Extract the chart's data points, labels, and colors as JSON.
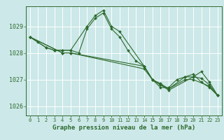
{
  "background_color": "#cce8e8",
  "grid_color": "#ffffff",
  "line_color": "#2d6a2d",
  "xlabel": "Graphe pression niveau de la mer (hPa)",
  "xlim": [
    -0.5,
    23.5
  ],
  "ylim": [
    1025.65,
    1029.75
  ],
  "yticks": [
    1026,
    1027,
    1028,
    1029
  ],
  "xticks": [
    0,
    1,
    2,
    3,
    4,
    5,
    6,
    7,
    8,
    9,
    10,
    11,
    12,
    13,
    14,
    15,
    16,
    17,
    18,
    19,
    20,
    21,
    22,
    23
  ],
  "series": [
    {
      "x": [
        0,
        1,
        2,
        3,
        4,
        5,
        6,
        7,
        8,
        9,
        10,
        11,
        12,
        13,
        14,
        15,
        16,
        17,
        18,
        19,
        20,
        21,
        22,
        23
      ],
      "y": [
        1028.6,
        1028.4,
        1028.2,
        1028.1,
        1028.1,
        1028.1,
        1028.0,
        1028.9,
        1029.3,
        1029.5,
        1028.9,
        1028.6,
        1028.1,
        1027.7,
        1027.5,
        1027.0,
        1026.7,
        1026.7,
        1027.0,
        1027.1,
        1027.2,
        1026.9,
        1026.7,
        1026.4
      ]
    },
    {
      "x": [
        0,
        2,
        3,
        4,
        5,
        7,
        8,
        9,
        10,
        11,
        14,
        15,
        16,
        17,
        20,
        21,
        22,
        23
      ],
      "y": [
        1028.6,
        1028.2,
        1028.1,
        1028.1,
        1028.1,
        1029.0,
        1029.4,
        1029.6,
        1029.0,
        1028.8,
        1027.5,
        1027.0,
        1026.8,
        1026.6,
        1027.1,
        1027.3,
        1026.9,
        1026.4
      ]
    },
    {
      "x": [
        0,
        4,
        5,
        14,
        15,
        16,
        17,
        19,
        20,
        21,
        22,
        23
      ],
      "y": [
        1028.6,
        1028.0,
        1028.0,
        1027.5,
        1027.0,
        1026.8,
        1026.65,
        1027.1,
        1027.1,
        1027.05,
        1026.8,
        1026.4
      ]
    },
    {
      "x": [
        0,
        4,
        5,
        14,
        15,
        16,
        17,
        19,
        20,
        22,
        23
      ],
      "y": [
        1028.6,
        1028.0,
        1028.0,
        1027.4,
        1027.0,
        1026.85,
        1026.65,
        1027.0,
        1027.0,
        1026.75,
        1026.4
      ]
    }
  ],
  "marker": "D",
  "markersize": 2.0,
  "linewidth": 0.8,
  "label_fontsize": 5.5,
  "xlabel_fontsize": 6.5,
  "ytick_fontsize": 6.0,
  "xtick_fontsize": 5.0
}
